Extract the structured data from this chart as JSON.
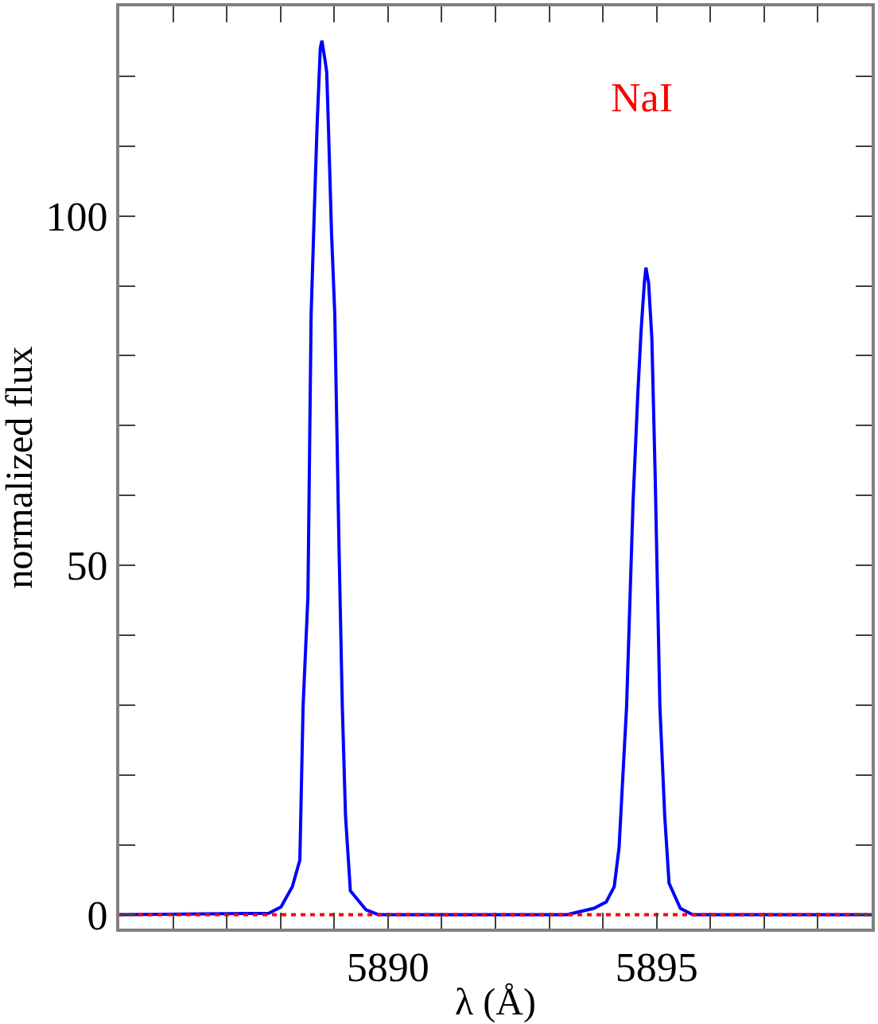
{
  "chart_data": {
    "type": "line",
    "xlabel": "λ (Å)",
    "ylabel": "normalized flux",
    "annotations": [
      "NaI"
    ],
    "xlim": [
      5885,
      5899
    ],
    "ylim": [
      -2,
      130
    ],
    "xticks": [
      {
        "value": 5886,
        "label": null
      },
      {
        "value": 5887,
        "label": null
      },
      {
        "value": 5888,
        "label": null
      },
      {
        "value": 5889,
        "label": null
      },
      5890,
      {
        "value": 5891,
        "label": null
      },
      {
        "value": 5892,
        "label": null
      },
      {
        "value": 5893,
        "label": null
      },
      {
        "value": 5894,
        "label": null
      },
      5895,
      {
        "value": 5896,
        "label": null
      },
      {
        "value": 5897,
        "label": null
      },
      {
        "value": 5898,
        "label": null
      }
    ],
    "yticks": [
      0,
      {
        "value": 10,
        "label": null
      },
      {
        "value": 20,
        "label": null
      },
      {
        "value": 30,
        "label": null
      },
      {
        "value": 40,
        "label": null
      },
      50,
      {
        "value": 60,
        "label": null
      },
      {
        "value": 70,
        "label": null
      },
      {
        "value": 80,
        "label": null
      },
      {
        "value": 90,
        "label": null
      },
      100,
      {
        "value": 110,
        "label": null
      },
      {
        "value": 120,
        "label": null
      }
    ],
    "marker": "none",
    "series": [
      {
        "color": "#0000ff",
        "line_style": "solid",
        "x": [
          5885,
          5887.78,
          5888.01,
          5888.22,
          5888.36,
          5888.42,
          5888.51,
          5888.57,
          5888.63,
          5888.68,
          5888.74,
          5888.77,
          5888.83,
          5888.86,
          5888.89,
          5888.95,
          5889.01,
          5889.09,
          5889.15,
          5889.21,
          5889.3,
          5889.59,
          5889.82,
          5893.33,
          5893.83,
          5894.06,
          5894.21,
          5894.3,
          5894.44,
          5894.56,
          5894.65,
          5894.71,
          5894.77,
          5894.8,
          5894.85,
          5894.91,
          5894.97,
          5895.03,
          5895.06,
          5895.15,
          5895.23,
          5895.44,
          5895.67,
          5899
        ],
        "values": [
          0,
          0.2,
          1.1,
          4.0,
          7.8,
          29.8,
          45.5,
          85.9,
          100.9,
          112.8,
          124.0,
          125.1,
          122.2,
          120.6,
          113.2,
          97.5,
          85.9,
          52.2,
          29.8,
          14.1,
          3.4,
          0.7,
          0,
          0,
          0.9,
          1.8,
          4.0,
          9.6,
          29.8,
          59.0,
          74.7,
          83.6,
          90.4,
          92.6,
          90.4,
          82.5,
          63.5,
          41.0,
          29.8,
          14.1,
          4.5,
          0.9,
          0,
          0
        ]
      },
      {
        "color": "#ff0000",
        "line_style": "dotted",
        "x": [
          5885,
          5899
        ],
        "values": [
          0,
          0
        ]
      }
    ]
  }
}
